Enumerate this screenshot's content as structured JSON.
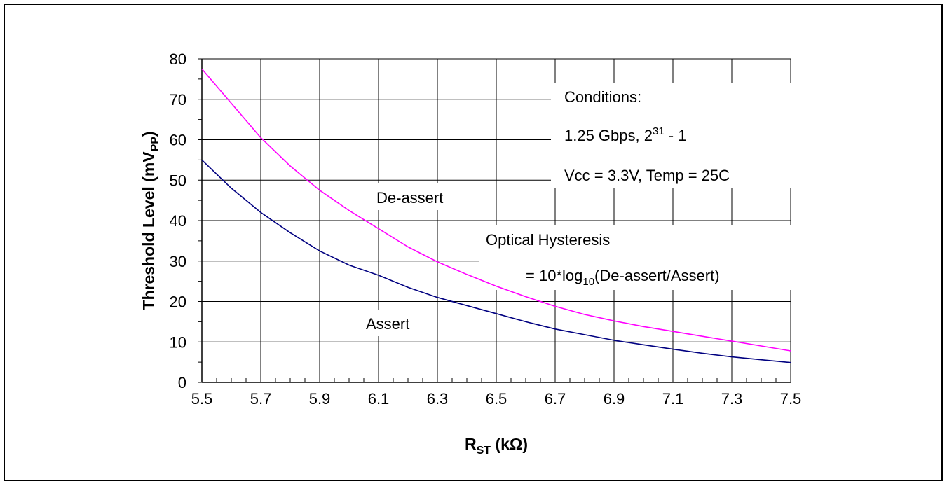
{
  "chart_data": {
    "type": "line",
    "xlabel": {
      "main": "R",
      "sub": "ST",
      "rest": " (kΩ)"
    },
    "ylabel": {
      "main": "Threshold Level (mV",
      "sub": "PP",
      "rest": ")"
    },
    "xlim": [
      5.5,
      7.5
    ],
    "ylim": [
      0,
      80
    ],
    "x_ticks": [
      "5.5",
      "5.7",
      "5.9",
      "6.1",
      "6.3",
      "6.5",
      "6.7",
      "6.9",
      "7.1",
      "7.3",
      "7.5"
    ],
    "y_ticks": [
      "0",
      "10",
      "20",
      "30",
      "40",
      "50",
      "60",
      "70",
      "80"
    ],
    "grid": true,
    "series": [
      {
        "name": "De-assert",
        "color": "#ff00ff",
        "x": [
          5.5,
          5.6,
          5.7,
          5.8,
          5.9,
          6.0,
          6.1,
          6.2,
          6.3,
          6.4,
          6.5,
          6.6,
          6.7,
          6.8,
          6.9,
          7.0,
          7.1,
          7.2,
          7.3,
          7.4,
          7.5
        ],
        "y": [
          77.5,
          69,
          60.5,
          53.5,
          47.5,
          42.5,
          38,
          33.5,
          29.8,
          26.7,
          23.8,
          21.2,
          18.8,
          16.8,
          15.2,
          13.8,
          12.6,
          11.4,
          10.2,
          9.0,
          7.8
        ]
      },
      {
        "name": "Assert",
        "color": "#000080",
        "x": [
          5.5,
          5.6,
          5.7,
          5.8,
          5.9,
          6.0,
          6.1,
          6.2,
          6.3,
          6.4,
          6.5,
          6.6,
          6.7,
          6.8,
          6.9,
          7.0,
          7.1,
          7.2,
          7.3,
          7.4,
          7.5
        ],
        "y": [
          55,
          48,
          42,
          37,
          32.5,
          29,
          26.5,
          23.5,
          21,
          19,
          17,
          15,
          13.2,
          11.8,
          10.4,
          9.3,
          8.2,
          7.2,
          6.3,
          5.6,
          4.9
        ]
      }
    ],
    "annotations": {
      "deassert_label": "De-assert",
      "assert_label": "Assert",
      "conditions_title": "Conditions:",
      "conditions_rate_prefix": "1.25 Gbps, 2",
      "conditions_rate_exp": "31",
      "conditions_rate_suffix": " - 1",
      "conditions_env": "Vcc = 3.3V, Temp = 25C",
      "hysteresis_title": "Optical Hysteresis",
      "hysteresis_formula_prefix": "= 10*log",
      "hysteresis_formula_sub": "10",
      "hysteresis_formula_suffix": "(De-assert/Assert)"
    }
  }
}
